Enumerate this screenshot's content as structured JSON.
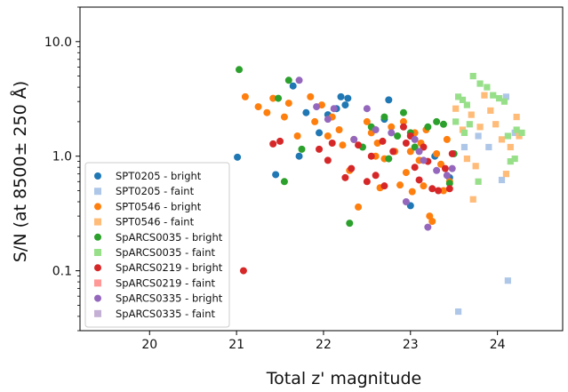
{
  "chart_data": {
    "type": "scatter",
    "title": "",
    "xlabel": "Total z' magnitude",
    "ylabel": "S/N (at 8500± 250 Å)",
    "xlim": [
      19.2,
      24.75
    ],
    "ylim": [
      0.03,
      20
    ],
    "yscale": "log",
    "grid": false,
    "legend_position": "lower-left",
    "x_ticks": [
      {
        "value": 20,
        "label": "20"
      },
      {
        "value": 21,
        "label": "21"
      },
      {
        "value": 22,
        "label": "22"
      },
      {
        "value": 23,
        "label": "23"
      },
      {
        "value": 24,
        "label": "24"
      }
    ],
    "y_ticks": [
      {
        "value": 0.1,
        "label": "0.1"
      },
      {
        "value": 1.0,
        "label": "1.0"
      },
      {
        "value": 10.0,
        "label": "10.0"
      }
    ],
    "series": [
      {
        "name": "SPT0205 - bright",
        "marker": "circle",
        "color": "#1f77b4",
        "points": [
          [
            21.01,
            0.98
          ],
          [
            21.45,
            0.69
          ],
          [
            21.65,
            4.1
          ],
          [
            21.72,
            1.0
          ],
          [
            21.8,
            2.4
          ],
          [
            21.95,
            1.6
          ],
          [
            22.05,
            2.3
          ],
          [
            22.15,
            2.6
          ],
          [
            22.2,
            3.3
          ],
          [
            22.28,
            3.2
          ],
          [
            22.25,
            2.8
          ],
          [
            22.75,
            3.1
          ],
          [
            22.7,
            2.1
          ],
          [
            23.0,
            0.37
          ],
          [
            23.28,
            1.0
          ],
          [
            23.45,
            0.65
          ]
        ]
      },
      {
        "name": "SPT0205 - faint",
        "marker": "square",
        "color": "#aec7e8",
        "points": [
          [
            23.55,
            0.044
          ],
          [
            24.05,
            0.62
          ],
          [
            24.1,
            3.3
          ],
          [
            24.12,
            0.082
          ],
          [
            23.9,
            1.2
          ],
          [
            24.2,
            1.6
          ],
          [
            23.62,
            1.2
          ],
          [
            23.78,
            1.5
          ]
        ]
      },
      {
        "name": "SPT0546 - bright",
        "marker": "circle",
        "color": "#ff7f0e",
        "points": [
          [
            21.1,
            3.3
          ],
          [
            21.25,
            2.7
          ],
          [
            21.35,
            2.4
          ],
          [
            21.42,
            3.2
          ],
          [
            21.55,
            2.2
          ],
          [
            21.6,
            2.9
          ],
          [
            21.7,
            1.5
          ],
          [
            21.85,
            3.3
          ],
          [
            21.9,
            2.0
          ],
          [
            21.98,
            2.8
          ],
          [
            22.05,
            1.5
          ],
          [
            22.1,
            2.2
          ],
          [
            22.18,
            1.7
          ],
          [
            22.22,
            1.25
          ],
          [
            22.3,
            0.75
          ],
          [
            22.35,
            1.4
          ],
          [
            22.4,
            0.36
          ],
          [
            22.5,
            2.0
          ],
          [
            22.55,
            1.6
          ],
          [
            22.6,
            1.0
          ],
          [
            22.62,
            1.3
          ],
          [
            22.65,
            0.53
          ],
          [
            22.7,
            0.95
          ],
          [
            22.78,
            1.8
          ],
          [
            22.82,
            1.1
          ],
          [
            22.88,
            0.56
          ],
          [
            22.92,
            2.0
          ],
          [
            22.95,
            0.72
          ],
          [
            23.0,
            1.1
          ],
          [
            23.02,
            0.49
          ],
          [
            23.05,
            1.6
          ],
          [
            23.1,
            0.92
          ],
          [
            23.12,
            1.3
          ],
          [
            23.15,
            0.55
          ],
          [
            23.18,
            1.7
          ],
          [
            23.22,
            0.3
          ],
          [
            23.25,
            0.27
          ],
          [
            23.3,
            1.05
          ],
          [
            23.35,
            0.85
          ],
          [
            23.38,
            0.5
          ],
          [
            23.42,
            1.4
          ],
          [
            23.45,
            0.6
          ]
        ]
      },
      {
        "name": "SPT0546 - faint",
        "marker": "square",
        "color": "#ffbb78",
        "points": [
          [
            23.52,
            2.6
          ],
          [
            23.6,
            1.7
          ],
          [
            23.65,
            0.95
          ],
          [
            23.72,
            0.42
          ],
          [
            23.75,
            0.82
          ],
          [
            23.8,
            1.8
          ],
          [
            23.85,
            3.4
          ],
          [
            23.92,
            2.5
          ],
          [
            23.98,
            1.9
          ],
          [
            24.05,
            1.4
          ],
          [
            24.1,
            0.7
          ],
          [
            24.15,
            1.2
          ],
          [
            24.22,
            2.2
          ],
          [
            24.25,
            1.5
          ],
          [
            23.7,
            2.3
          ]
        ]
      },
      {
        "name": "SpARCS0035 - bright",
        "marker": "circle",
        "color": "#2ca02c",
        "points": [
          [
            21.03,
            5.7
          ],
          [
            21.48,
            3.2
          ],
          [
            21.55,
            0.6
          ],
          [
            21.6,
            4.6
          ],
          [
            21.75,
            1.15
          ],
          [
            22.3,
            0.26
          ],
          [
            22.45,
            1.2
          ],
          [
            22.55,
            1.8
          ],
          [
            22.7,
            2.2
          ],
          [
            22.75,
            0.95
          ],
          [
            22.85,
            1.5
          ],
          [
            22.92,
            2.4
          ],
          [
            23.0,
            1.6
          ],
          [
            23.05,
            1.2
          ],
          [
            23.2,
            1.8
          ],
          [
            23.3,
            2.0
          ],
          [
            23.38,
            1.9
          ],
          [
            23.45,
            0.58
          ],
          [
            23.5,
            1.05
          ]
        ]
      },
      {
        "name": "SpARCS0035 - faint",
        "marker": "square",
        "color": "#98df8a",
        "points": [
          [
            23.55,
            3.3
          ],
          [
            23.6,
            3.1
          ],
          [
            23.65,
            2.8
          ],
          [
            23.72,
            5.0
          ],
          [
            23.78,
            0.6
          ],
          [
            23.8,
            4.3
          ],
          [
            23.88,
            4.0
          ],
          [
            23.95,
            3.4
          ],
          [
            24.02,
            3.2
          ],
          [
            24.08,
            3.0
          ],
          [
            24.12,
            1.5
          ],
          [
            24.15,
            0.9
          ],
          [
            24.2,
            0.95
          ],
          [
            24.22,
            1.7
          ],
          [
            24.28,
            1.6
          ],
          [
            23.52,
            2.0
          ],
          [
            23.62,
            1.6
          ],
          [
            23.68,
            1.9
          ]
        ]
      },
      {
        "name": "SpARCS0219 - bright",
        "marker": "circle",
        "color": "#d62728",
        "points": [
          [
            21.08,
            0.1
          ],
          [
            21.42,
            1.28
          ],
          [
            21.5,
            1.35
          ],
          [
            21.95,
            1.15
          ],
          [
            22.05,
            0.92
          ],
          [
            22.1,
            1.3
          ],
          [
            22.25,
            0.65
          ],
          [
            22.32,
            0.78
          ],
          [
            22.4,
            1.25
          ],
          [
            22.5,
            0.6
          ],
          [
            22.55,
            1.0
          ],
          [
            22.6,
            0.68
          ],
          [
            22.68,
            1.35
          ],
          [
            22.7,
            0.55
          ],
          [
            22.8,
            1.1
          ],
          [
            22.92,
            1.8
          ],
          [
            22.95,
            1.3
          ],
          [
            23.0,
            1.5
          ],
          [
            23.05,
            0.8
          ],
          [
            23.1,
            0.62
          ],
          [
            23.15,
            1.2
          ],
          [
            23.2,
            0.9
          ],
          [
            23.25,
            0.52
          ],
          [
            23.32,
            0.5
          ],
          [
            23.4,
            0.78
          ],
          [
            23.45,
            0.52
          ],
          [
            23.48,
            1.05
          ]
        ]
      },
      {
        "name": "SpARCS0219 - faint",
        "marker": "square",
        "color": "#ff9896",
        "points": []
      },
      {
        "name": "SpARCS0335 - bright",
        "marker": "circle",
        "color": "#9467bd",
        "points": [
          [
            21.72,
            4.6
          ],
          [
            21.92,
            2.7
          ],
          [
            22.05,
            2.1
          ],
          [
            22.12,
            2.6
          ],
          [
            22.35,
            1.4
          ],
          [
            22.5,
            2.6
          ],
          [
            22.6,
            1.7
          ],
          [
            22.78,
            1.6
          ],
          [
            22.95,
            0.4
          ],
          [
            23.05,
            1.4
          ],
          [
            23.1,
            1.1
          ],
          [
            23.15,
            0.92
          ],
          [
            23.2,
            0.24
          ],
          [
            23.3,
            0.75
          ],
          [
            23.42,
            0.68
          ],
          [
            23.48,
            0.78
          ]
        ]
      },
      {
        "name": "SpARCS0335 - faint",
        "marker": "square",
        "color": "#c5b0d5",
        "points": []
      }
    ]
  }
}
